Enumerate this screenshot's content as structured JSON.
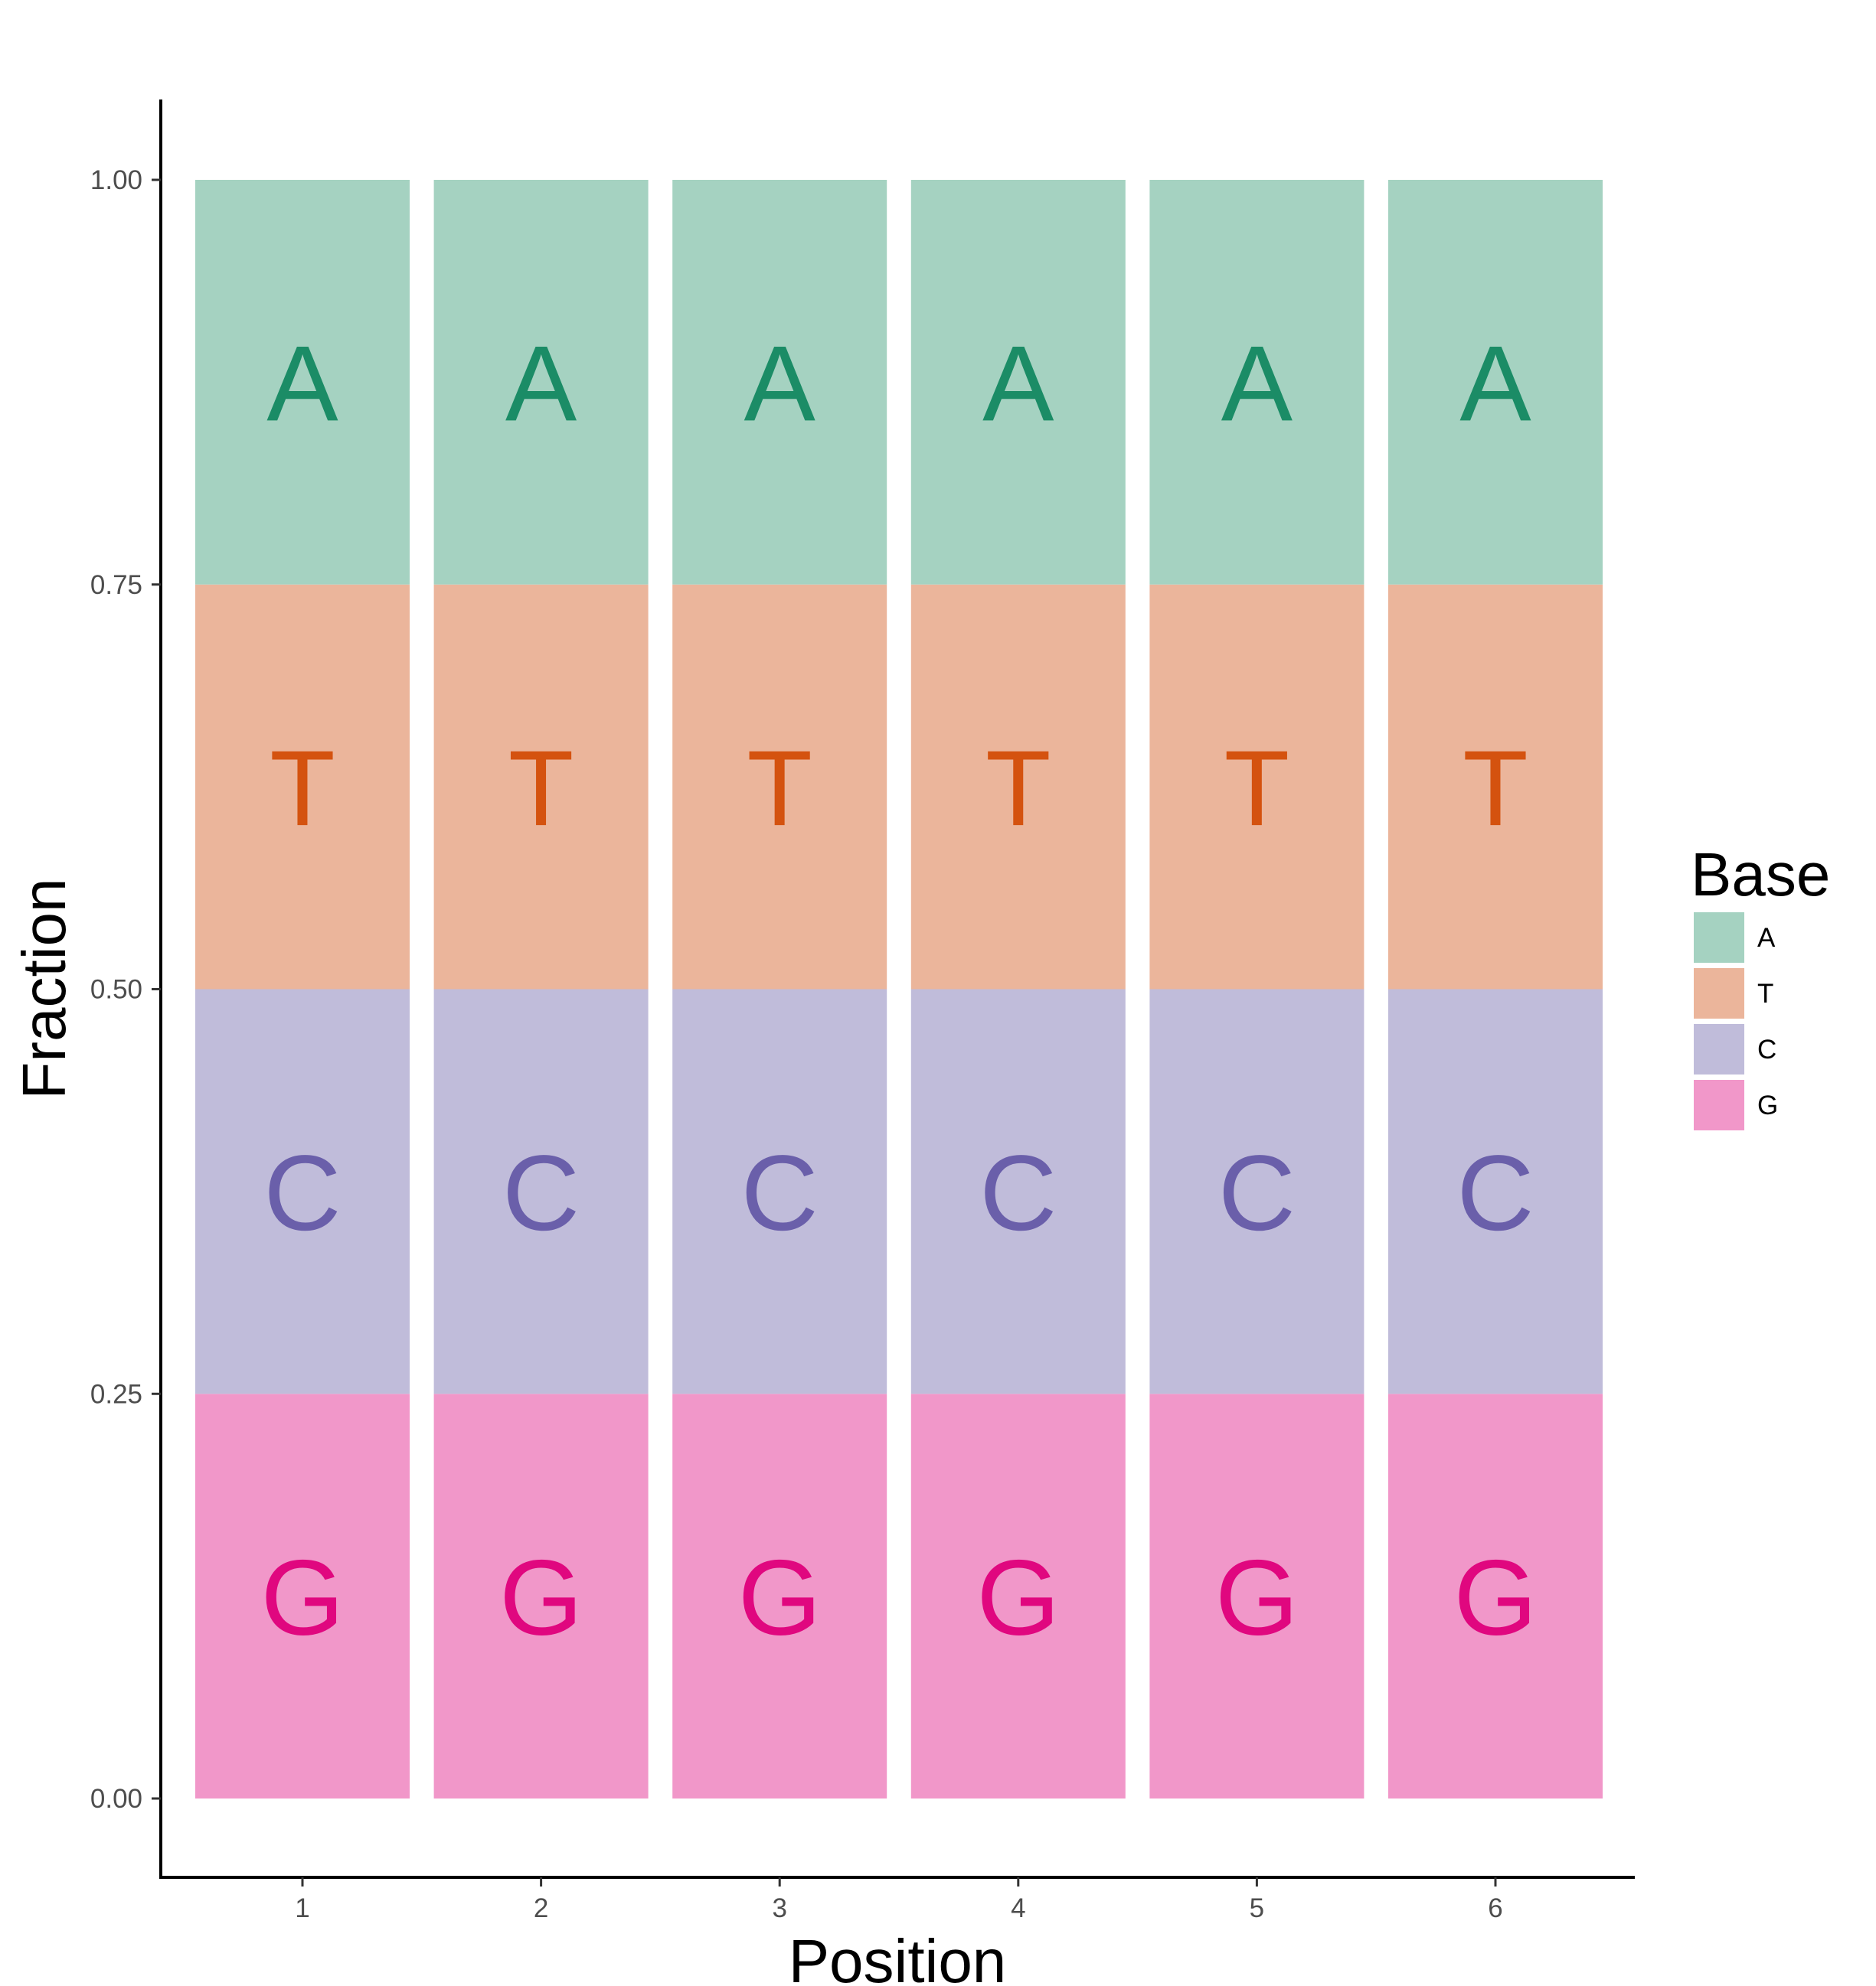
{
  "chart_data": {
    "type": "bar",
    "stacked": true,
    "title": "",
    "xlabel": "Position",
    "ylabel": "Fraction",
    "categories": [
      "1",
      "2",
      "3",
      "4",
      "5",
      "6"
    ],
    "yticks": [
      "0.00",
      "0.25",
      "0.50",
      "0.75",
      "1.00"
    ],
    "ylim": [
      0,
      1
    ],
    "grid": false,
    "legend": {
      "title": "Base",
      "placement": "right",
      "items": [
        "A",
        "T",
        "C",
        "G"
      ]
    },
    "series": [
      {
        "name": "G",
        "values": [
          0.25,
          0.25,
          0.25,
          0.25,
          0.25,
          0.25
        ],
        "fill": "#F197C9",
        "text": "#E0077F"
      },
      {
        "name": "C",
        "values": [
          0.25,
          0.25,
          0.25,
          0.25,
          0.25,
          0.25
        ],
        "fill": "#C0BCDA",
        "text": "#6A5FAA"
      },
      {
        "name": "T",
        "values": [
          0.25,
          0.25,
          0.25,
          0.25,
          0.25,
          0.25
        ],
        "fill": "#EBB59B",
        "text": "#D4520F"
      },
      {
        "name": "A",
        "values": [
          0.25,
          0.25,
          0.25,
          0.25,
          0.25,
          0.25
        ],
        "fill": "#A5D2C1",
        "text": "#1B8C66"
      }
    ],
    "bar_labels": true
  }
}
